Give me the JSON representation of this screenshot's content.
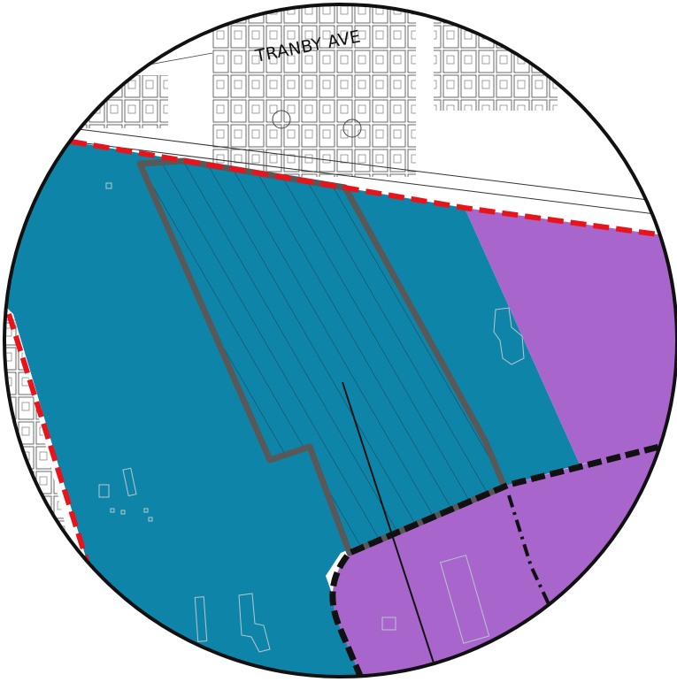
{
  "map": {
    "street_labels": {
      "top": "TRANBY AVE"
    },
    "colors": {
      "zone_teal": "#0e85a8",
      "zone_purple": "#a866cc",
      "subject_site_outline": "#585858",
      "boundary_red_dash": "#e8141c",
      "boundary_black_dash": "#111111",
      "frame_outline": "#111111",
      "background": "#ffffff",
      "parcel_lines": "#333333"
    },
    "legend_items": []
  }
}
